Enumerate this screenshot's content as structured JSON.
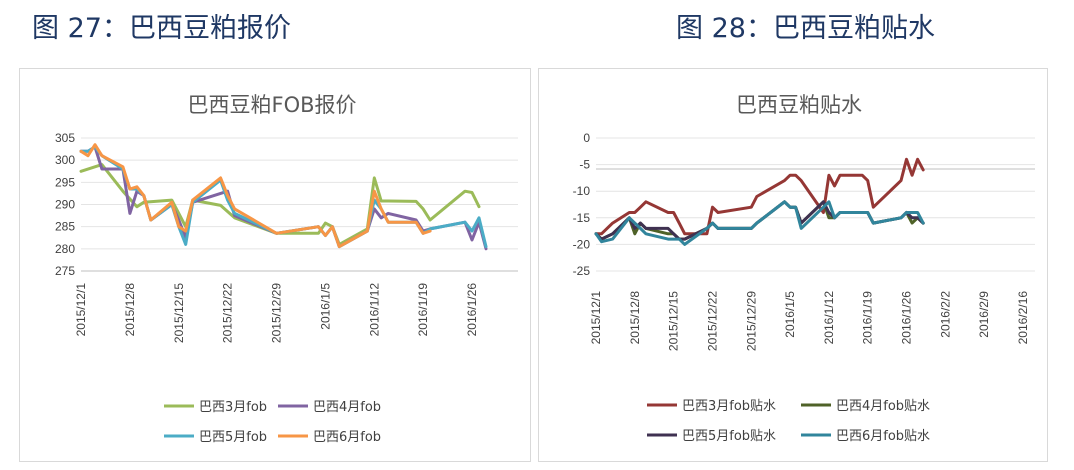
{
  "figures": {
    "fig1_caption": "图 27：巴西豆粕报价",
    "fig2_caption": "图 28：巴西豆粕贴水"
  },
  "chart_data": [
    {
      "type": "line",
      "title": "巴西豆粕FOB报价",
      "xlabel": "",
      "ylabel": "",
      "ylim": [
        275,
        305
      ],
      "yticks": [
        275,
        280,
        285,
        290,
        295,
        300,
        305
      ],
      "x_tick_labels": [
        "2015/12/1",
        "2015/12/8",
        "2015/12/15",
        "2015/12/22",
        "2015/12/29",
        "2016/1/5",
        "2016/1/12",
        "2016/1/19",
        "2016/1/26"
      ],
      "legend": "bottom",
      "series": [
        {
          "name": "巴西3月fob",
          "color": "#9bbb59",
          "x": [
            "2015/12/1",
            "2015/12/4",
            "2015/12/7",
            "2015/12/9",
            "2015/12/10",
            "2015/12/14",
            "2015/12/16",
            "2015/12/17",
            "2015/12/21",
            "2015/12/23",
            "2015/12/29",
            "2016/1/4",
            "2016/1/5",
            "2016/1/6",
            "2016/1/7",
            "2016/1/11",
            "2016/1/12",
            "2016/1/13",
            "2016/1/14",
            "2016/1/18",
            "2016/1/19",
            "2016/1/20",
            "2016/1/25",
            "2016/1/26",
            "2016/1/27"
          ],
          "values": [
            297.5,
            299,
            293,
            289.5,
            290.5,
            291,
            285,
            291,
            289.8,
            287,
            283.5,
            283.5,
            285.8,
            285,
            281,
            284.5,
            296,
            290.8,
            290.8,
            290.7,
            289,
            286.5,
            293,
            292.7,
            289.5
          ]
        },
        {
          "name": "巴西4月fob",
          "color": "#8064a2",
          "x": [
            "2015/12/1",
            "2015/12/2",
            "2015/12/3",
            "2015/12/4",
            "2015/12/7",
            "2015/12/8",
            "2015/12/9",
            "2015/12/10",
            "2015/12/11",
            "2015/12/14",
            "2015/12/15",
            "2015/12/16",
            "2015/12/17",
            "2015/12/21",
            "2015/12/22",
            "2015/12/23",
            "2015/12/29",
            "2016/1/4",
            "2016/1/5",
            "2016/1/6",
            "2016/1/7",
            "2016/1/11",
            "2016/1/12",
            "2016/1/13",
            "2016/1/14",
            "2016/1/18",
            "2016/1/19",
            "2016/1/20",
            "2016/1/25",
            "2016/1/26",
            "2016/1/27",
            "2016/1/28"
          ],
          "values": [
            302,
            302,
            303,
            298,
            298,
            288,
            293,
            292,
            286.5,
            290,
            286.5,
            282.5,
            290.5,
            292.5,
            293,
            287.5,
            283.5,
            285,
            283,
            285,
            280.5,
            284,
            289,
            287,
            288,
            286.5,
            284,
            284.5,
            286,
            282,
            286,
            280
          ]
        },
        {
          "name": "巴西5月fob",
          "color": "#4bacc6",
          "x": [
            "2015/12/1",
            "2015/12/2",
            "2015/12/3",
            "2015/12/4",
            "2015/12/7",
            "2015/12/8",
            "2015/12/9",
            "2015/12/10",
            "2015/12/11",
            "2015/12/14",
            "2015/12/15",
            "2015/12/16",
            "2015/12/17",
            "2015/12/21",
            "2015/12/22",
            "2015/12/23",
            "2015/12/29",
            "2016/1/4",
            "2016/1/5",
            "2016/1/6",
            "2016/1/7",
            "2016/1/11",
            "2016/1/12",
            "2016/1/13",
            "2016/1/14",
            "2016/1/18",
            "2016/1/19",
            "2016/1/20",
            "2016/1/25",
            "2016/1/26",
            "2016/1/27",
            "2016/1/28"
          ],
          "values": [
            302,
            302,
            303,
            301,
            298,
            293.5,
            293.5,
            292,
            286.5,
            290,
            285,
            281,
            290.5,
            295.5,
            291,
            288,
            283.5,
            285,
            283,
            285,
            280.5,
            284,
            291,
            289,
            286,
            286,
            283.5,
            284.5,
            286,
            284,
            287,
            280.5
          ]
        },
        {
          "name": "巴西6月fob",
          "color": "#f79646",
          "x": [
            "2015/12/1",
            "2015/12/2",
            "2015/12/3",
            "2015/12/4",
            "2015/12/7",
            "2015/12/8",
            "2015/12/9",
            "2015/12/10",
            "2015/12/11",
            "2015/12/14",
            "2015/12/15",
            "2015/12/16",
            "2015/12/17",
            "2015/12/21",
            "2015/12/22",
            "2015/12/23",
            "2015/12/29",
            "2016/1/4",
            "2016/1/5",
            "2016/1/6",
            "2016/1/7",
            "2016/1/11",
            "2016/1/12",
            "2016/1/13",
            "2016/1/14",
            "2016/1/18",
            "2016/1/19",
            "2016/1/20"
          ],
          "values": [
            302,
            301,
            303.5,
            301,
            298.5,
            293.5,
            294,
            292,
            286.5,
            290.5,
            285,
            284,
            291,
            296,
            292,
            289,
            283.5,
            285,
            283,
            285,
            280.5,
            284,
            293,
            289,
            286,
            286,
            283.5,
            284
          ]
        }
      ]
    },
    {
      "type": "line",
      "title": "巴西豆粕贴水",
      "xlabel": "",
      "ylabel": "",
      "ylim": [
        -25,
        0
      ],
      "yticks": [
        -25,
        -20,
        -15,
        -10,
        -5,
        0
      ],
      "x_tick_labels": [
        "2015/12/1",
        "2015/12/8",
        "2015/12/15",
        "2015/12/22",
        "2015/12/29",
        "2016/1/5",
        "2016/1/12",
        "2016/1/19",
        "2016/1/26",
        "2016/2/2",
        "2016/2/9",
        "2016/2/16"
      ],
      "legend": "bottom",
      "series": [
        {
          "name": "巴西3月fob贴水",
          "color": "#953735",
          "x": [
            "2015/12/1",
            "2015/12/2",
            "2015/12/4",
            "2015/12/7",
            "2015/12/8",
            "2015/12/9",
            "2015/12/10",
            "2015/12/14",
            "2015/12/15",
            "2015/12/16",
            "2015/12/17",
            "2015/12/21",
            "2015/12/22",
            "2015/12/23",
            "2015/12/29",
            "2015/12/30",
            "2016/1/4",
            "2016/1/5",
            "2016/1/6",
            "2016/1/7",
            "2016/1/11",
            "2016/1/12",
            "2016/1/13",
            "2016/1/14",
            "2016/1/15",
            "2016/1/18",
            "2016/1/19",
            "2016/1/20",
            "2016/1/25",
            "2016/1/26",
            "2016/1/27",
            "2016/1/28",
            "2016/1/29"
          ],
          "values": [
            -18,
            -18,
            -16,
            -14,
            -14,
            -13,
            -12,
            -14,
            -14,
            -16,
            -18,
            -18,
            -13,
            -14,
            -13,
            -11,
            -8,
            -7,
            -7,
            -8,
            -14,
            -7,
            -9,
            -7,
            -7,
            -7,
            -8,
            -13,
            -8,
            -4,
            -7,
            -4,
            -6
          ]
        },
        {
          "name": "巴西4月fob贴水",
          "color": "#4f6228",
          "x": [
            "2015/12/1",
            "2015/12/2",
            "2015/12/4",
            "2015/12/7",
            "2015/12/8",
            "2015/12/9",
            "2015/12/10",
            "2015/12/14",
            "2015/12/15",
            "2015/12/16",
            "2015/12/17",
            "2015/12/21",
            "2015/12/22",
            "2015/12/23",
            "2015/12/29",
            "2015/12/30",
            "2016/1/4",
            "2016/1/5",
            "2016/1/6",
            "2016/1/7",
            "2016/1/11",
            "2016/1/12",
            "2016/1/13",
            "2016/1/14",
            "2016/1/15",
            "2016/1/18",
            "2016/1/19",
            "2016/1/20",
            "2016/1/25",
            "2016/1/26",
            "2016/1/27",
            "2016/1/28",
            "2016/1/29"
          ],
          "values": [
            -18,
            -19,
            -18,
            -15,
            -18,
            -16,
            -17,
            -18,
            -18,
            -19,
            -19,
            -17,
            -16,
            -17,
            -17,
            -16,
            -12,
            -13,
            -13,
            -16,
            -12,
            -15,
            -15,
            -14,
            -14,
            -14,
            -14,
            -16,
            -15,
            -14,
            -16,
            -15,
            -16
          ]
        },
        {
          "name": "巴西5月fob贴水",
          "color": "#3f3151",
          "x": [
            "2015/12/1",
            "2015/12/2",
            "2015/12/4",
            "2015/12/7",
            "2015/12/8",
            "2015/12/9",
            "2015/12/10",
            "2015/12/14",
            "2015/12/15",
            "2015/12/16",
            "2015/12/17",
            "2015/12/21",
            "2015/12/22",
            "2015/12/23",
            "2015/12/29",
            "2015/12/30",
            "2016/1/4",
            "2016/1/5",
            "2016/1/6",
            "2016/1/7",
            "2016/1/11",
            "2016/1/12",
            "2016/1/13",
            "2016/1/14",
            "2016/1/15",
            "2016/1/18",
            "2016/1/19",
            "2016/1/20",
            "2016/1/25",
            "2016/1/26",
            "2016/1/27",
            "2016/1/28",
            "2016/1/29"
          ],
          "values": [
            -18,
            -19,
            -18,
            -15,
            -17,
            -16,
            -17,
            -17,
            -18,
            -19,
            -19,
            -17,
            -16,
            -17,
            -17,
            -16,
            -12,
            -13,
            -13,
            -16,
            -12,
            -14,
            -15,
            -14,
            -14,
            -14,
            -14,
            -16,
            -15,
            -14,
            -15,
            -15,
            -16
          ]
        },
        {
          "name": "巴西6月fob贴水",
          "color": "#31859c",
          "x": [
            "2015/12/1",
            "2015/12/2",
            "2015/12/4",
            "2015/12/7",
            "2015/12/8",
            "2015/12/9",
            "2015/12/10",
            "2015/12/14",
            "2015/12/15",
            "2015/12/16",
            "2015/12/17",
            "2015/12/21",
            "2015/12/22",
            "2015/12/23",
            "2015/12/29",
            "2015/12/30",
            "2016/1/4",
            "2016/1/5",
            "2016/1/6",
            "2016/1/7",
            "2016/1/11",
            "2016/1/12",
            "2016/1/13",
            "2016/1/14",
            "2016/1/15",
            "2016/1/18",
            "2016/1/19",
            "2016/1/20",
            "2016/1/25",
            "2016/1/26",
            "2016/1/27",
            "2016/1/28",
            "2016/1/29"
          ],
          "values": [
            -18,
            -19.5,
            -19,
            -15,
            -16,
            -17,
            -18,
            -19,
            -19,
            -19,
            -20,
            -17,
            -16,
            -17,
            -17,
            -16,
            -12,
            -13,
            -13,
            -17,
            -13,
            -12,
            -15,
            -14,
            -14,
            -14,
            -14,
            -16,
            -15,
            -14,
            -14,
            -14,
            -16
          ]
        }
      ]
    }
  ]
}
